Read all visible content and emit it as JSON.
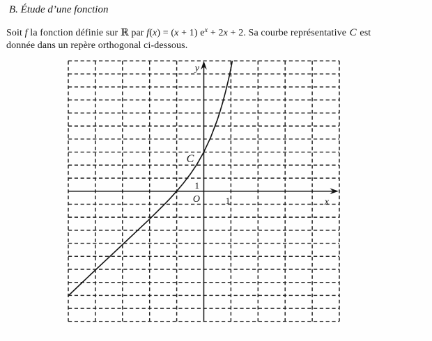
{
  "document": {
    "section_title": "B. Étude d’une fonction"
  },
  "intro": {
    "line1": [
      {
        "t": "Soit "
      },
      {
        "t": "f",
        "s": "it"
      },
      {
        "t": " la fonction définie sur "
      },
      {
        "t": "ℝ",
        "s": "bb"
      },
      {
        "t": " par "
      },
      {
        "t": "f",
        "s": "it"
      },
      {
        "t": "("
      },
      {
        "t": "x",
        "s": "it"
      },
      {
        "t": ") = ("
      },
      {
        "t": "x",
        "s": "it"
      },
      {
        "t": " + 1) e"
      },
      {
        "t": "x",
        "s": "supit"
      },
      {
        "t": " + 2"
      },
      {
        "t": "x",
        "s": "it"
      },
      {
        "t": " + 2. Sa courbe représentative "
      },
      {
        "t": "C",
        "s": "script"
      },
      {
        "t": " est"
      }
    ],
    "line2": [
      {
        "t": "donnée dans un repère orthogonal ci-dessous."
      }
    ]
  },
  "chart_data": {
    "type": "line",
    "title": "",
    "function": "f(x) = (x + 1) e^x + 2x + 2",
    "xlabel": "x",
    "ylabel": "y",
    "xlim": [
      -5,
      5
    ],
    "ylim": [
      -10,
      10
    ],
    "grid": "dashed, 1-unit cells, orthogonal (non-square) scale",
    "origin_label": "O",
    "unit_label_x": "1",
    "unit_label_y": "1",
    "curve_label": "C",
    "x_intercept": -1,
    "y_intercept": 3,
    "points": [
      [
        -5,
        -8.03
      ],
      [
        -4.5,
        -7.04
      ],
      [
        -4,
        -6.05
      ],
      [
        -3.5,
        -5.08
      ],
      [
        -3,
        -4.1
      ],
      [
        -2.5,
        -3.12
      ],
      [
        -2,
        -2.14
      ],
      [
        -1.75,
        -1.63
      ],
      [
        -1.5,
        -1.11
      ],
      [
        -1.25,
        -0.57
      ],
      [
        -1,
        0
      ],
      [
        -0.75,
        0.62
      ],
      [
        -0.5,
        1.3
      ],
      [
        -0.25,
        2.08
      ],
      [
        0,
        3
      ],
      [
        0.25,
        4.11
      ],
      [
        0.5,
        5.47
      ],
      [
        0.6,
        6.12
      ],
      [
        0.7,
        6.82
      ],
      [
        0.8,
        7.61
      ],
      [
        0.9,
        8.47
      ],
      [
        0.95,
        8.94
      ],
      [
        1,
        9.44
      ],
      [
        1.05,
        9.96
      ]
    ]
  }
}
